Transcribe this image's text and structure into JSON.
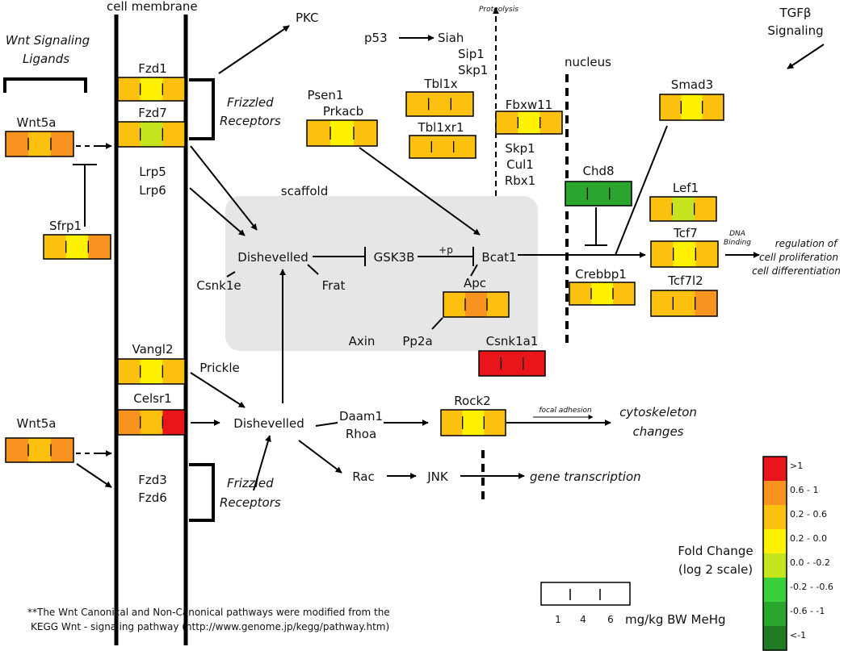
{
  "labels": {
    "cell_membrane": "cell membrane",
    "wnt_ligands_1": "Wnt Signaling",
    "wnt_ligands_2": "Ligands",
    "pkc": "PKC",
    "p53": "p53",
    "siah": "Siah",
    "sip1": "Sip1",
    "skp1_top": "Skp1",
    "proteolysis": "Proteolysis",
    "tgfb_1": "TGFβ",
    "tgfb_2": "Signaling",
    "nucleus": "nucleus",
    "fzd1": "Fzd1",
    "fzd7": "Fzd7",
    "frizzled_1": "Frizzled",
    "frizzled_2": "Receptors",
    "wnt5a": "Wnt5a",
    "lrp5": "Lrp5",
    "lrp6": "Lrp6",
    "sfrp1": "Sfrp1",
    "psen1": "Psen1",
    "prkacb": "Prkacb",
    "tbl1x": "Tbl1x",
    "tbl1xr1": "Tbl1xr1",
    "fbxw11": "Fbxw11",
    "skp1": "Skp1",
    "cul1": "Cul1",
    "rbx1": "Rbx1",
    "smad3": "Smad3",
    "chd8": "Chd8",
    "lef1": "Lef1",
    "tcf7": "Tcf7",
    "tcf7l2": "Tcf7l2",
    "scaffold": "scaffold",
    "dishevelled": "Dishevelled",
    "gsk3b": "GSK3B",
    "plus_p": "+p",
    "bcat1": "Bcat1",
    "csnk1e": "Csnk1e",
    "frat": "Frat",
    "apc": "Apc",
    "axin": "Axin",
    "pp2a": "Pp2a",
    "csnk1a1": "Csnk1a1",
    "crebbp1": "Crebbp1",
    "dna_1": "DNA",
    "dna_2": "Binding",
    "reg_1": "regulation of",
    "reg_2": "cell proliferation",
    "reg_3": "cell differentiation",
    "vangl2": "Vangl2",
    "prickle": "Prickle",
    "celsr1": "Celsr1",
    "dishevelled2": "Dishevelled",
    "daam1": "Daam1",
    "rhoa": "Rhoa",
    "rock2": "Rock2",
    "focal_adhesion": "focal adhesion",
    "cyto_1": "cytoskeleton",
    "cyto_2": "changes",
    "fzd3": "Fzd3",
    "fzd6": "Fzd6",
    "rac": "Rac",
    "jnk": "JNK",
    "gene_tx": "gene transcription",
    "footnote_1": "**The Wnt Canonical and Non-Canonical pathways were modified from the",
    "footnote_2": "KEGG Wnt - signaling pathway (http://www.genome.jp/kegg/pathway.htm)",
    "dose_1": "1",
    "dose_4": "4",
    "dose_6": "6",
    "dose_unit": "mg/kg BW MeHg",
    "fold_change_1": "Fold Change",
    "fold_change_2": "(log 2 scale)"
  },
  "legend": [
    {
      "label": ">1",
      "color": "#e8161b"
    },
    {
      "label": "0.6 - 1",
      "color": "#f7931e"
    },
    {
      "label": "0.2 - 0.6",
      "color": "#fcc10f"
    },
    {
      "label": "0.2 - 0.0",
      "color": "#fef200"
    },
    {
      "label": "0.0 - -0.2",
      "color": "#c6e51f"
    },
    {
      "label": "-0.2 - -0.6",
      "color": "#39d13a"
    },
    {
      "label": "-0.6 - -1",
      "color": "#2aa52d"
    },
    {
      "label": "<-1",
      "color": "#1f7a22"
    }
  ],
  "genes": [
    {
      "gene": "Fzd1",
      "colors": [
        "#fcc10f",
        "#fef200",
        "#fcc10f"
      ]
    },
    {
      "gene": "Fzd7",
      "colors": [
        "#fcc10f",
        "#c6e51f",
        "#fcc10f"
      ]
    },
    {
      "gene": "Wnt5a",
      "colors": [
        "#f7931e",
        "#fcc10f",
        "#f7931e"
      ]
    },
    {
      "gene": "Sfrp1",
      "colors": [
        "#fcc10f",
        "#fef200",
        "#f7931e"
      ]
    },
    {
      "gene": "Prkacb",
      "colors": [
        "#fcc10f",
        "#fef200",
        "#fcc10f"
      ]
    },
    {
      "gene": "Tbl1x",
      "colors": [
        "#fcc10f",
        "#fcc10f",
        "#fcc10f"
      ]
    },
    {
      "gene": "Tbl1xr1",
      "colors": [
        "#fcc10f",
        "#fcc10f",
        "#fcc10f"
      ]
    },
    {
      "gene": "Fbxw11",
      "colors": [
        "#fcc10f",
        "#fef200",
        "#fcc10f"
      ]
    },
    {
      "gene": "Smad3",
      "colors": [
        "#fcc10f",
        "#fef200",
        "#fcc10f"
      ]
    },
    {
      "gene": "Chd8",
      "colors": [
        "#2aa52d",
        "#2aa52d",
        "#2aa52d"
      ]
    },
    {
      "gene": "Lef1",
      "colors": [
        "#fcc10f",
        "#c6e51f",
        "#fcc10f"
      ]
    },
    {
      "gene": "Tcf7",
      "colors": [
        "#fcc10f",
        "#fef200",
        "#fcc10f"
      ]
    },
    {
      "gene": "Tcf7l2",
      "colors": [
        "#fcc10f",
        "#fcc10f",
        "#f7931e"
      ]
    },
    {
      "gene": "Apc",
      "colors": [
        "#fcc10f",
        "#f7931e",
        "#fcc10f"
      ]
    },
    {
      "gene": "Csnk1a1",
      "colors": [
        "#e8161b",
        "#e8161b",
        "#e8161b"
      ]
    },
    {
      "gene": "Crebbp1",
      "colors": [
        "#fcc10f",
        "#fef200",
        "#fcc10f"
      ]
    },
    {
      "gene": "Vangl2",
      "colors": [
        "#fcc10f",
        "#fef200",
        "#fcc10f"
      ]
    },
    {
      "gene": "Celsr1",
      "colors": [
        "#f7931e",
        "#fcc10f",
        "#e8161b"
      ]
    },
    {
      "gene": "Wnt5a_2",
      "colors": [
        "#f7931e",
        "#fcc10f",
        "#f7931e"
      ]
    },
    {
      "gene": "Rock2",
      "colors": [
        "#fcc10f",
        "#fef200",
        "#fcc10f"
      ]
    }
  ]
}
